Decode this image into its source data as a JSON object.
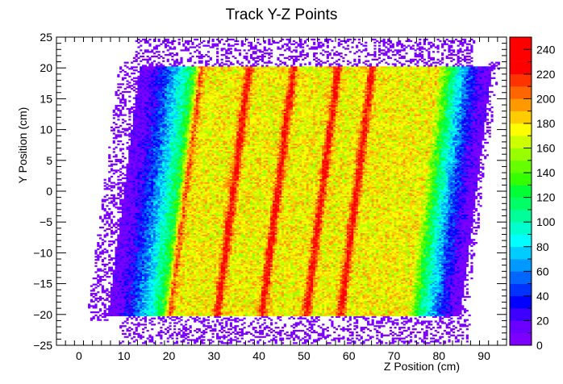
{
  "chart_data": {
    "type": "heatmap",
    "title": "Track Y-Z Points",
    "xlabel": "Z Position (cm)",
    "ylabel": "Y Position (cm)",
    "xlim": [
      -5,
      95
    ],
    "ylim": [
      -25,
      25
    ],
    "x_ticks": [
      0,
      10,
      20,
      30,
      40,
      50,
      60,
      70,
      80,
      90
    ],
    "y_ticks": [
      -25,
      -20,
      -15,
      -10,
      -5,
      0,
      5,
      10,
      15,
      20,
      25
    ],
    "z_range": [
      0,
      250
    ],
    "z_ticks": [
      0,
      20,
      40,
      60,
      80,
      100,
      120,
      140,
      160,
      180,
      200,
      220,
      240
    ],
    "palette": [
      "#7d00ff",
      "#6a00ff",
      "#3d00ff",
      "#0000ff",
      "#0033ff",
      "#0066ff",
      "#0099ff",
      "#00ccff",
      "#00ffff",
      "#00ffcc",
      "#00ff99",
      "#00ff66",
      "#00ff33",
      "#33ff00",
      "#66ff00",
      "#99ff00",
      "#ccff00",
      "#ffff00",
      "#ffcc00",
      "#ff9900",
      "#ff6600",
      "#ff3300",
      "#ff0000",
      "#ff0000",
      "#ff0000"
    ],
    "grid": false,
    "legend": "right color bar",
    "region": {
      "y_bottom": -20,
      "y_top": 20,
      "z_left_at_bottom": 8,
      "z_left_at_top": 15,
      "z_right_at_bottom": 84,
      "z_right_at_top": 91
    },
    "core_counts": 175,
    "ridge_counts": 230
  }
}
